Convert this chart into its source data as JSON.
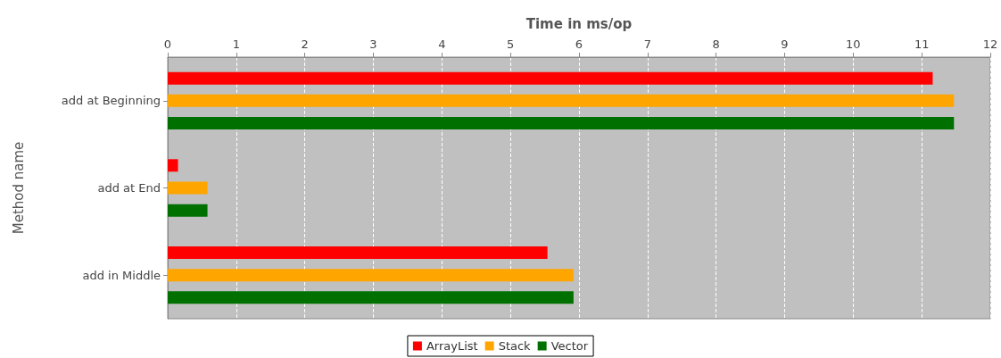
{
  "chart_data": {
    "type": "bar",
    "orientation": "horizontal",
    "xlabel": "Time in ms/op",
    "ylabel": "Method name",
    "categories": [
      "add at Beginning",
      "add at End",
      "add in Middle"
    ],
    "series": [
      {
        "name": "ArrayList",
        "color": "#ff0000",
        "values": [
          11.16,
          0.15,
          5.54
        ]
      },
      {
        "name": "Stack",
        "color": "#ffa500",
        "values": [
          11.47,
          0.58,
          5.92
        ]
      },
      {
        "name": "Vector",
        "color": "#007000",
        "values": [
          11.47,
          0.58,
          5.92
        ]
      }
    ],
    "xlim": [
      0,
      12
    ],
    "xticks": [
      0,
      1,
      2,
      3,
      4,
      5,
      6,
      7,
      8,
      9,
      10,
      11,
      12
    ],
    "grid": "x",
    "legend": "bottom"
  }
}
